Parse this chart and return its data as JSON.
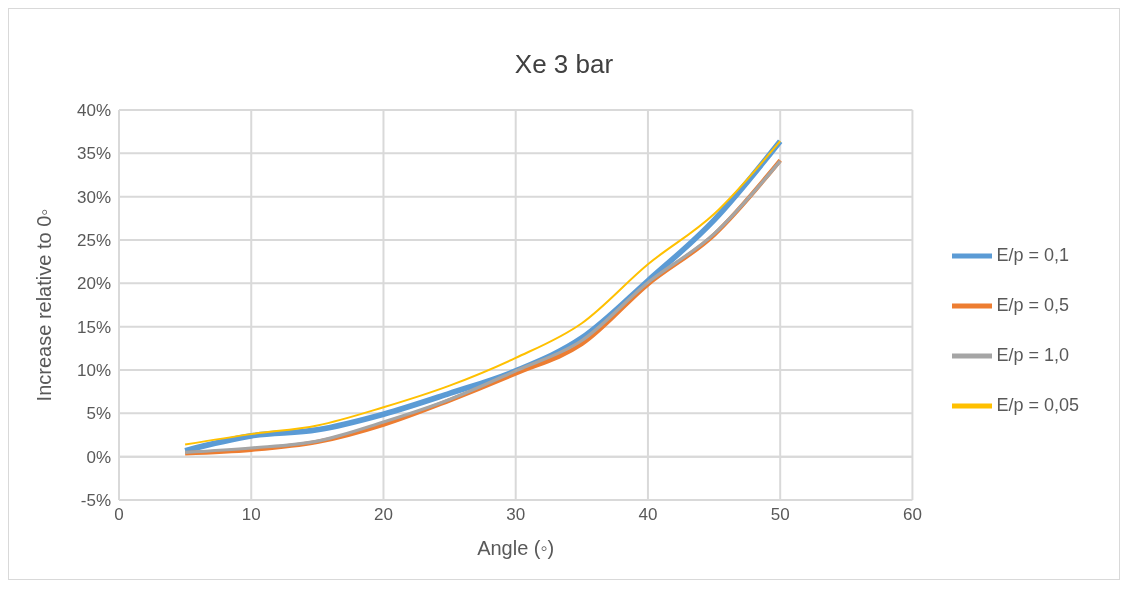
{
  "chart_data": {
    "type": "line",
    "title": "Xe 3 bar",
    "xlabel": "Angle (◦)",
    "ylabel": "Increase relative to 0◦",
    "x": [
      5,
      10,
      15,
      20,
      25,
      30,
      35,
      40,
      45,
      50
    ],
    "series": [
      {
        "name": "E/p = 0,1",
        "color": "#5b9bd5",
        "values": [
          0.7,
          2.4,
          3.1,
          4.9,
          7.3,
          9.9,
          13.7,
          20.3,
          27.3,
          36.4
        ]
      },
      {
        "name": "E/p = 0,5",
        "color": "#ed7d31",
        "values": [
          0.4,
          0.8,
          1.7,
          3.7,
          6.5,
          9.6,
          13.0,
          19.9,
          25.6,
          34.2
        ]
      },
      {
        "name": "E/p = 1,0",
        "color": "#a5a5a5",
        "values": [
          0.5,
          1.0,
          1.8,
          4.0,
          6.6,
          9.9,
          13.4,
          20.1,
          25.7,
          34.1
        ]
      },
      {
        "name": "E/p = 0,05",
        "color": "#ffc000",
        "values": [
          1.4,
          2.6,
          3.6,
          5.7,
          8.2,
          11.4,
          15.4,
          22.2,
          28.0,
          36.4
        ]
      }
    ],
    "xlim": [
      0,
      60
    ],
    "xticks": [
      0,
      10,
      20,
      30,
      40,
      50,
      60
    ],
    "ylim": [
      -5,
      40
    ],
    "yticks": [
      {
        "value": -5,
        "label": "-5%"
      },
      {
        "value": 0,
        "label": "0%"
      },
      {
        "value": 5,
        "label": "5%"
      },
      {
        "value": 10,
        "label": "10%"
      },
      {
        "value": 15,
        "label": "15%"
      },
      {
        "value": 20,
        "label": "20%"
      },
      {
        "value": 25,
        "label": "25%"
      },
      {
        "value": 30,
        "label": "30%"
      },
      {
        "value": 35,
        "label": "35%"
      },
      {
        "value": 40,
        "label": "40%"
      }
    ],
    "grid": true,
    "legend": "right",
    "line_style": "solid"
  }
}
